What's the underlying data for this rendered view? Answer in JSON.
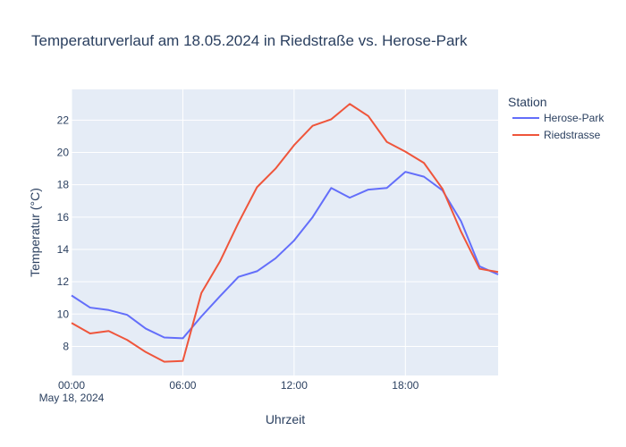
{
  "chart_data": {
    "type": "line",
    "title": "Temperaturverlauf am 18.05.2024 in Riedstraße vs. Herose-Park",
    "xlabel": "Uhrzeit",
    "ylabel": "Temperatur (°C)",
    "x_date_label": "May 18, 2024",
    "x_hours": [
      0,
      1,
      2,
      3,
      4,
      5,
      6,
      7,
      8,
      9,
      10,
      11,
      12,
      13,
      14,
      15,
      16,
      17,
      18,
      19,
      20,
      21,
      22,
      23
    ],
    "x_ticks": [
      {
        "hour": 0,
        "label": "00:00"
      },
      {
        "hour": 6,
        "label": "06:00"
      },
      {
        "hour": 12,
        "label": "12:00"
      },
      {
        "hour": 18,
        "label": "18:00"
      }
    ],
    "xlim": [
      0,
      23
    ],
    "ylim": [
      6.2,
      23.9
    ],
    "y_ticks": [
      8,
      10,
      12,
      14,
      16,
      18,
      20,
      22
    ],
    "grid": true,
    "legend_title": "Station",
    "legend_position": "top-right",
    "series": [
      {
        "name": "Herose-Park",
        "color": "#636efa",
        "values": [
          11.15,
          10.4,
          10.25,
          9.95,
          9.1,
          8.55,
          8.5,
          9.85,
          11.1,
          12.3,
          12.65,
          13.45,
          14.55,
          16.0,
          17.8,
          17.2,
          17.7,
          17.8,
          18.8,
          18.5,
          17.65,
          15.75,
          12.95,
          12.45
        ]
      },
      {
        "name": "Riedstrasse",
        "color": "#ef553b",
        "values": [
          9.45,
          8.8,
          8.95,
          8.4,
          7.65,
          7.05,
          7.1,
          11.3,
          13.25,
          15.65,
          17.85,
          19.0,
          20.45,
          21.65,
          22.05,
          23.0,
          22.25,
          20.65,
          20.05,
          19.35,
          17.75,
          15.1,
          12.8,
          12.6
        ]
      }
    ]
  }
}
